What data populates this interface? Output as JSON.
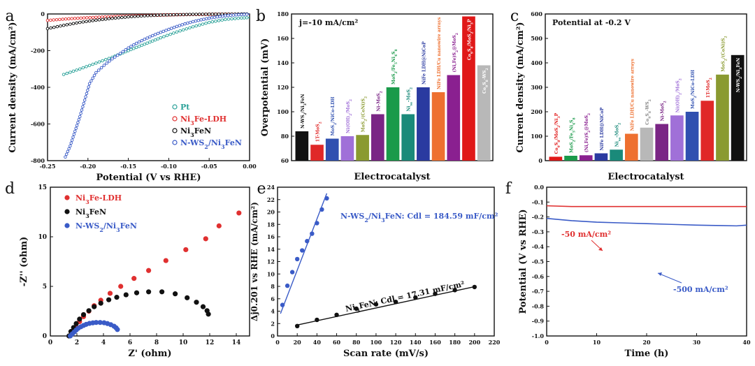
{
  "figure": {
    "chart_data": [
      {
        "panel": "a",
        "type": "line",
        "title": "",
        "xlabel": "Potential (V vs RHE)",
        "ylabel": "Current density (mA/cm²)",
        "xlim": [
          -0.25,
          0.0
        ],
        "ylim": [
          -800,
          0
        ],
        "xticks": [
          "-0.25",
          "-0.20",
          "-0.15",
          "-0.10",
          "-0.05",
          "0.00"
        ],
        "yticks": [
          "0",
          "-200",
          "-400",
          "-600",
          "-800"
        ],
        "legend_position": "bottom-right",
        "series": [
          {
            "name": "Pt",
            "color": "#2aa198",
            "marker": "circle",
            "x": [
              -0.23,
              -0.21,
              -0.19,
              -0.17,
              -0.15,
              -0.13,
              -0.11,
              -0.09,
              -0.07,
              -0.05,
              -0.03,
              -0.01,
              0.0
            ],
            "y": [
              -330,
              -300,
              -268,
              -236,
              -200,
              -165,
              -130,
              -98,
              -70,
              -46,
              -30,
              -22,
              -20
            ]
          },
          {
            "name": "Ni3Fe-LDH",
            "color": "#e03030",
            "marker": "circle",
            "x": [
              -0.25,
              -0.22,
              -0.19,
              -0.16,
              -0.13,
              -0.1,
              -0.07,
              -0.04,
              -0.01,
              0.0
            ],
            "y": [
              -35,
              -25,
              -18,
              -12,
              -8,
              -5,
              -3,
              -2,
              -1,
              -1
            ]
          },
          {
            "name": "Ni3FeN",
            "color": "#111111",
            "marker": "circle",
            "x": [
              -0.25,
              -0.23,
              -0.21,
              -0.19,
              -0.17,
              -0.15,
              -0.13,
              -0.11,
              -0.09,
              -0.07,
              -0.05,
              -0.03,
              -0.01,
              0.0
            ],
            "y": [
              -80,
              -62,
              -46,
              -34,
              -24,
              -16,
              -10,
              -6,
              -4,
              -2,
              -1,
              -1,
              0,
              0
            ]
          },
          {
            "name": "N-WS2/Ni3FeN",
            "color": "#3a5bc7",
            "marker": "circle",
            "x": [
              -0.228,
              -0.222,
              -0.216,
              -0.21,
              -0.204,
              -0.198,
              -0.19,
              -0.18,
              -0.17,
              -0.16,
              -0.15,
              -0.14,
              -0.13,
              -0.12,
              -0.11,
              -0.1,
              -0.09,
              -0.08,
              -0.07,
              -0.06,
              -0.05,
              -0.04,
              -0.03,
              -0.02,
              -0.01,
              0.0
            ],
            "y": [
              -780,
              -720,
              -640,
              -560,
              -470,
              -380,
              -320,
              -280,
              -245,
              -215,
              -185,
              -160,
              -138,
              -118,
              -100,
              -84,
              -68,
              -54,
              -42,
              -32,
              -23,
              -16,
              -10,
              -6,
              -3,
              -1
            ]
          }
        ],
        "legend": [
          {
            "label": "Pt",
            "color": "#2aa198"
          },
          {
            "label": "Ni3Fe-LDH",
            "color": "#e03030"
          },
          {
            "label": "Ni3FeN",
            "color": "#111111"
          },
          {
            "label": "N-WS2/Ni3FeN",
            "color": "#3a5bc7"
          }
        ]
      },
      {
        "panel": "b",
        "type": "bar",
        "title": "j=-10 mA/cm²",
        "xlabel": "Electrocatalyst",
        "ylabel": "Overpotential (mV)",
        "ylim": [
          60,
          180
        ],
        "yticks": [
          "60",
          "80",
          "100",
          "120",
          "140",
          "160",
          "180"
        ],
        "categories": [
          "N-WS2/Ni3FeN",
          "1T-MoS2",
          "MoS2/NiCo-LDH",
          "Ni(OH)2/MoS2",
          "MoS2/(CoNi)S2",
          "Ni-MoS2",
          "MoS2/Fe5Ni4S8",
          "Nisa-MoS2",
          "NiFe LDH@NiCoP",
          "NiFe LDH/Cu nanowire arrays",
          "(Ni,Fe)S2@MoS2",
          "Co9S8/MoS2/Ni3P",
          "Co9S8-WS2"
        ],
        "values": [
          84,
          73,
          78,
          80,
          81,
          98,
          120,
          98,
          120,
          116,
          130,
          178,
          138
        ],
        "colors": [
          "#111111",
          "#e02828",
          "#3050b0",
          "#a070d8",
          "#8a9a30",
          "#7a2585",
          "#1a9a4a",
          "#1a8a7a",
          "#2a3aa0",
          "#ee7030",
          "#8a2090",
          "#e01818",
          "#b8b8b8"
        ],
        "label_colors": [
          "#111111",
          "#e02828",
          "#3050b0",
          "#a070d8",
          "#8a9a30",
          "#7a2585",
          "#1a9a4a",
          "#1a8a7a",
          "#2a3aa0",
          "#ee7030",
          "#8a2090",
          "#ffffff",
          "#ffffff"
        ]
      },
      {
        "panel": "c",
        "type": "bar",
        "title": "Potential at -0.2 V",
        "xlabel": "Electrocatalyst",
        "ylabel": "Current density (mA/cm²)",
        "ylim": [
          0,
          600
        ],
        "yticks": [
          "0",
          "100",
          "200",
          "300",
          "400",
          "500",
          "600"
        ],
        "categories": [
          "Co9S8/MoS2/Ni3P",
          "MoS2/Fe5Ni4S8",
          "(Ni,Fe)S2@MoS2",
          "NiFe LDH@NiCoP",
          "Nisa-MoS2",
          "NiFe LDH/Cu nanowire arrays",
          "Co9S8-WS2",
          "Ni-MoS2",
          "Ni(OH)2/MoS2",
          "MoS2/NiCo-LDH",
          "1T-MoS2",
          "MoS2/(CoNi)S2",
          "N-WS2/Ni3FeN"
        ],
        "values": [
          16,
          20,
          22,
          30,
          45,
          110,
          135,
          150,
          185,
          200,
          245,
          352,
          432
        ],
        "colors": [
          "#e01818",
          "#1a9a4a",
          "#8a2090",
          "#2a3aa0",
          "#1a8a7a",
          "#ee7030",
          "#b8b8b8",
          "#7a2585",
          "#a070d8",
          "#3050b0",
          "#e02828",
          "#8a9a30",
          "#111111"
        ],
        "label_colors": [
          "#e01818",
          "#1a9a4a",
          "#8a2090",
          "#2a3aa0",
          "#1a8a7a",
          "#ee7030",
          "#888888",
          "#7a2585",
          "#a070d8",
          "#3050b0",
          "#e02828",
          "#8a9a30",
          "#ffffff"
        ]
      },
      {
        "panel": "d",
        "type": "scatter",
        "title": "",
        "xlabel": "Z' (ohm)",
        "ylabel": "-Z'' (ohm)",
        "xlim": [
          0,
          15
        ],
        "ylim": [
          0,
          15
        ],
        "xticks": [
          "0",
          "2",
          "4",
          "6",
          "8",
          "10",
          "12",
          "14"
        ],
        "yticks": [
          "0",
          "5",
          "10",
          "15"
        ],
        "legend_position": "top-left",
        "series": [
          {
            "name": "Ni3Fe-LDH",
            "color": "#e03030",
            "x": [
              1.5,
              1.7,
              1.95,
              2.2,
              2.5,
              2.9,
              3.3,
              3.8,
              4.5,
              5.3,
              6.3,
              7.4,
              8.7,
              10.2,
              11.7,
              12.7,
              14.2
            ],
            "y": [
              0.05,
              0.5,
              0.95,
              1.45,
              1.95,
              2.5,
              3.05,
              3.6,
              4.3,
              5.0,
              5.8,
              6.6,
              7.6,
              8.7,
              9.8,
              11.1,
              12.4
            ]
          },
          {
            "name": "Ni3FeN",
            "color": "#111111",
            "x": [
              1.4,
              1.55,
              1.75,
              1.95,
              2.2,
              2.5,
              2.9,
              3.3,
              3.8,
              4.4,
              5.0,
              5.7,
              6.5,
              7.4,
              8.4,
              9.4,
              10.3,
              11.0,
              11.5,
              11.8,
              11.9
            ],
            "y": [
              0.0,
              0.45,
              0.85,
              1.25,
              1.7,
              2.15,
              2.55,
              2.95,
              3.3,
              3.65,
              3.9,
              4.15,
              4.35,
              4.45,
              4.45,
              4.25,
              3.85,
              3.4,
              2.95,
              2.55,
              2.2
            ]
          },
          {
            "name": "N-WS2/Ni3FeN",
            "color": "#3a5bc7",
            "x": [
              1.5,
              1.65,
              1.8,
              1.95,
              2.1,
              2.3,
              2.5,
              2.7,
              2.95,
              3.2,
              3.45,
              3.75,
              4.05,
              4.3,
              4.55,
              4.8,
              4.95,
              5.05
            ],
            "y": [
              0.0,
              0.2,
              0.4,
              0.6,
              0.78,
              0.93,
              1.06,
              1.17,
              1.27,
              1.32,
              1.36,
              1.36,
              1.33,
              1.25,
              1.14,
              0.98,
              0.82,
              0.65
            ]
          }
        ],
        "legend": [
          {
            "label": "Ni3Fe-LDH",
            "color": "#e03030"
          },
          {
            "label": "Ni3FeN",
            "color": "#111111"
          },
          {
            "label": "N-WS2/Ni3FeN",
            "color": "#3a5bc7"
          }
        ]
      },
      {
        "panel": "e",
        "type": "scatter",
        "title": "",
        "xlabel": "Scan rate (mV/s)",
        "ylabel": "Δj0.201 vs RHE (mA/cm²)",
        "xlim": [
          0,
          220
        ],
        "ylim": [
          0,
          24
        ],
        "xticks": [
          "0",
          "20",
          "40",
          "60",
          "80",
          "100",
          "120",
          "140",
          "160",
          "180",
          "200",
          "220"
        ],
        "yticks": [
          "0",
          "2",
          "4",
          "6",
          "8",
          "10",
          "12",
          "14",
          "16",
          "18",
          "20",
          "22",
          "24"
        ],
        "series": [
          {
            "name": "N-WS2/Ni3FeN",
            "color": "#3a5bc7",
            "x": [
              5,
              10,
              15,
              20,
              25,
              30,
              35,
              40,
              45,
              50
            ],
            "y": [
              5.0,
              8.1,
              10.3,
              12.4,
              13.8,
              15.3,
              16.5,
              18.2,
              20.4,
              22.2
            ],
            "fit_x": [
              3,
              50
            ],
            "fit_y": [
              3.6,
              23.0
            ],
            "annotation": "N-WS2/Ni3FeN: Cdl = 184.59 mF/cm²"
          },
          {
            "name": "Ni3FeN",
            "color": "#111111",
            "x": [
              20,
              40,
              60,
              80,
              100,
              120,
              140,
              160,
              180,
              200
            ],
            "y": [
              1.6,
              2.6,
              3.4,
              4.4,
              5.1,
              5.5,
              6.2,
              6.8,
              7.4,
              7.9
            ],
            "fit_x": [
              18,
              200
            ],
            "fit_y": [
              1.7,
              7.95
            ],
            "annotation": "Ni3FeN: Cdl = 17.31 mF/cm²"
          }
        ]
      },
      {
        "panel": "f",
        "type": "line",
        "title": "",
        "xlabel": "Time (h)",
        "ylabel": "Potential (V vs RHE)",
        "xlim": [
          0,
          40
        ],
        "ylim": [
          -1.0,
          0.0
        ],
        "xticks": [
          "0",
          "10",
          "20",
          "30",
          "40"
        ],
        "yticks": [
          "0.0",
          "-0.1",
          "-0.2",
          "-0.3",
          "-0.4",
          "-0.5",
          "-0.6",
          "-0.7",
          "-0.8",
          "-0.9",
          "-1.0"
        ],
        "series": [
          {
            "name": "-50 mA/cm²",
            "color": "#e03030",
            "x": [
              0,
              5,
              10,
              15,
              20,
              25,
              30,
              35,
              40
            ],
            "y": [
              -0.125,
              -0.13,
              -0.13,
              -0.13,
              -0.13,
              -0.13,
              -0.13,
              -0.13,
              -0.13
            ]
          },
          {
            "name": "-500 mA/cm²",
            "color": "#3a5bc7",
            "x": [
              0,
              5,
              10,
              15,
              20,
              25,
              30,
              35,
              38,
              40
            ],
            "y": [
              -0.21,
              -0.225,
              -0.235,
              -0.24,
              -0.245,
              -0.25,
              -0.255,
              -0.258,
              -0.26,
              -0.255
            ]
          }
        ]
      }
    ]
  }
}
